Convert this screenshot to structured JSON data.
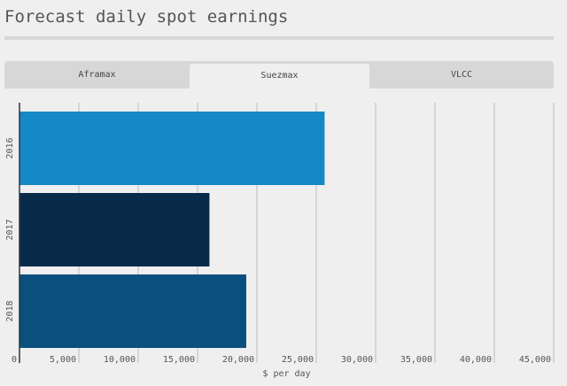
{
  "title": "Forecast daily spot earnings",
  "tabs": [
    {
      "label": "Aframax"
    },
    {
      "label": "Suezmax",
      "active": true
    },
    {
      "label": "VLCC"
    }
  ],
  "chart_data": {
    "type": "bar",
    "orientation": "horizontal",
    "categories": [
      "2016",
      "2017",
      "2018"
    ],
    "values": [
      25700,
      16000,
      19100
    ],
    "colors": [
      "#1589c6",
      "#0a2a4a",
      "#0b4f7e"
    ],
    "xlabel": "$ per day",
    "xlim": [
      0,
      45000
    ],
    "ticks": [
      0,
      5000,
      10000,
      15000,
      20000,
      25000,
      30000,
      35000,
      40000,
      45000
    ],
    "tick_labels": [
      "0",
      "5,000",
      "10,000",
      "15,000",
      "20,000",
      "25,000",
      "30,000",
      "35,000",
      "40,000",
      "45,000"
    ],
    "grid": true
  }
}
